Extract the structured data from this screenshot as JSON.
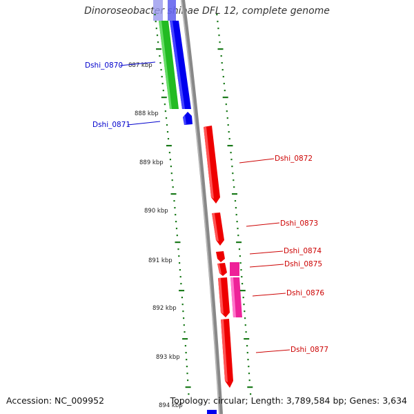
{
  "title": "Dinoroseobacter shibae DFL 12, complete genome",
  "footer": {
    "accession": "Accession: NC_009952",
    "topology": "Topology: circular; Length: 3,789,584 bp; Genes: 3,634"
  },
  "colors": {
    "backbone": "#888888",
    "tick": "#1a7a1a",
    "forward_gene": "#0000ee",
    "reverse_gene": "#ee0000",
    "green_feature": "#22bb22",
    "magenta_feature": "#ee2299"
  },
  "ruler": [
    {
      "kbp": 887,
      "label": "887 kbp"
    },
    {
      "kbp": 888,
      "label": "888 kbp"
    },
    {
      "kbp": 889,
      "label": "889 kbp"
    },
    {
      "kbp": 890,
      "label": "890 kbp"
    },
    {
      "kbp": 891,
      "label": "891 kbp"
    },
    {
      "kbp": 892,
      "label": "892 kbp"
    },
    {
      "kbp": 893,
      "label": "893 kbp"
    },
    {
      "kbp": 894,
      "label": "894 kbp"
    }
  ],
  "genes": [
    {
      "name": "Dshi_0870",
      "strand": "forward",
      "start_kbp": 886.4,
      "end_kbp": 887.9
    },
    {
      "name": "Dshi_0871",
      "strand": "forward",
      "start_kbp": 888.0,
      "end_kbp": 888.25
    },
    {
      "name": "Dshi_0872",
      "strand": "reverse",
      "start_kbp": 888.25,
      "end_kbp": 889.9
    },
    {
      "name": "Dshi_0873",
      "strand": "reverse",
      "start_kbp": 890.05,
      "end_kbp": 890.75
    },
    {
      "name": "Dshi_0874",
      "strand": "reverse",
      "start_kbp": 890.85,
      "end_kbp": 891.05
    },
    {
      "name": "Dshi_0875",
      "strand": "reverse",
      "start_kbp": 891.05,
      "end_kbp": 891.3
    },
    {
      "name": "Dshi_0876",
      "strand": "reverse",
      "start_kbp": 891.35,
      "end_kbp": 892.2
    },
    {
      "name": "Dshi_0877",
      "strand": "reverse",
      "start_kbp": 892.25,
      "end_kbp": 893.65
    }
  ]
}
